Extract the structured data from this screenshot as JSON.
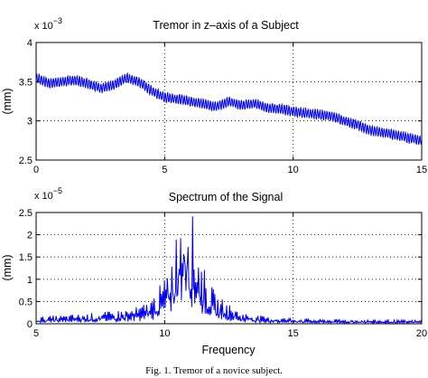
{
  "chart_data": [
    {
      "type": "line",
      "title": "Tremor in z–axis of a  Subject",
      "ylabel": "(mm)",
      "xlabel": "",
      "y_scale_label": "x 10",
      "y_scale_exponent": "−3",
      "xlim": [
        0,
        15
      ],
      "ylim": [
        2.5,
        4
      ],
      "x_ticks": [
        "0",
        "5",
        "10",
        "15"
      ],
      "y_ticks": [
        "2.5",
        "3",
        "3.5",
        "4"
      ],
      "grid": "dotted",
      "line_color": "#0000ee",
      "series": [
        {
          "x": [
            0,
            0.5,
            1,
            1.5,
            2,
            2.5,
            3,
            3.5,
            4,
            4.5,
            5,
            5.5,
            6,
            6.5,
            7,
            7.5,
            8,
            8.5,
            9,
            9.5,
            10,
            10.5,
            11,
            11.5,
            12,
            12.5,
            13,
            13.5,
            14,
            14.5,
            15
          ],
          "values": [
            3.55,
            3.48,
            3.5,
            3.52,
            3.48,
            3.42,
            3.45,
            3.55,
            3.5,
            3.38,
            3.3,
            3.28,
            3.25,
            3.22,
            3.18,
            3.25,
            3.2,
            3.22,
            3.17,
            3.15,
            3.12,
            3.1,
            3.08,
            3.06,
            3.0,
            2.95,
            2.88,
            2.85,
            2.82,
            2.78,
            2.75
          ],
          "oscillation_amplitude": 0.06
        }
      ]
    },
    {
      "type": "line",
      "title": "Spectrum of the Signal",
      "ylabel": "(mm)",
      "xlabel": "Frequency",
      "y_scale_label": "x 10",
      "y_scale_exponent": "−5",
      "xlim": [
        5,
        20
      ],
      "ylim": [
        0,
        2.5
      ],
      "x_ticks": [
        "5",
        "10",
        "15",
        "20"
      ],
      "y_ticks": [
        "0",
        "0.5",
        "1",
        "1.5",
        "2",
        "2.5"
      ],
      "grid": "dotted",
      "line_color": "#0000ee",
      "series": [
        {
          "x": [
            5,
            6,
            7,
            8,
            9,
            9.5,
            10,
            10.3,
            10.5,
            10.7,
            10.8,
            10.9,
            11,
            11.2,
            11.5,
            12,
            13,
            14,
            15,
            16,
            18,
            20
          ],
          "values": [
            0.12,
            0.15,
            0.18,
            0.22,
            0.3,
            0.45,
            0.8,
            1.3,
            1.7,
            2.35,
            2.45,
            2.3,
            2.1,
            1.6,
            1.0,
            0.5,
            0.2,
            0.12,
            0.1,
            0.08,
            0.07,
            0.06
          ]
        }
      ]
    }
  ],
  "caption": "Fig. 1. Tremor of a novice subject."
}
